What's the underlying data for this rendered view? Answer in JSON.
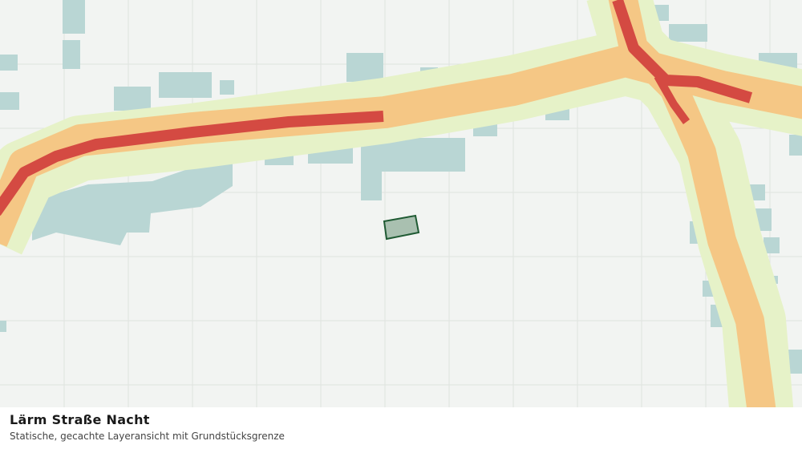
{
  "header": {
    "title": "Lärm Straße Nacht",
    "subtitle": "Statische, gecachte Layeransicht mit Grundstücksgrenze"
  }
}
